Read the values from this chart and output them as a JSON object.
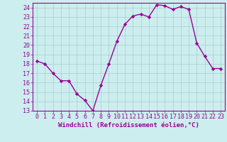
{
  "x": [
    0,
    1,
    2,
    3,
    4,
    5,
    6,
    7,
    8,
    9,
    10,
    11,
    12,
    13,
    14,
    15,
    16,
    17,
    18,
    19,
    20,
    21,
    22,
    23
  ],
  "y": [
    18.3,
    18.0,
    17.0,
    16.2,
    16.2,
    14.8,
    14.1,
    13.0,
    15.7,
    18.0,
    20.4,
    22.2,
    23.1,
    23.3,
    23.0,
    24.3,
    24.2,
    23.8,
    24.1,
    23.8,
    20.2,
    18.8,
    17.5,
    17.5
  ],
  "line_color": "#990099",
  "marker": "D",
  "markersize": 2.2,
  "linewidth": 1.0,
  "xlabel": "Windchill (Refroidissement éolien,°C)",
  "xlabel_fontsize": 6.5,
  "bg_color": "#cceeee",
  "grid_color": "#aacccc",
  "tick_fontsize": 6.0,
  "ylim": [
    13,
    24.5
  ],
  "xlim": [
    -0.5,
    23.5
  ],
  "yticks": [
    13,
    14,
    15,
    16,
    17,
    18,
    19,
    20,
    21,
    22,
    23,
    24
  ],
  "xticks": [
    0,
    1,
    2,
    3,
    4,
    5,
    6,
    7,
    8,
    9,
    10,
    11,
    12,
    13,
    14,
    15,
    16,
    17,
    18,
    19,
    20,
    21,
    22,
    23
  ]
}
